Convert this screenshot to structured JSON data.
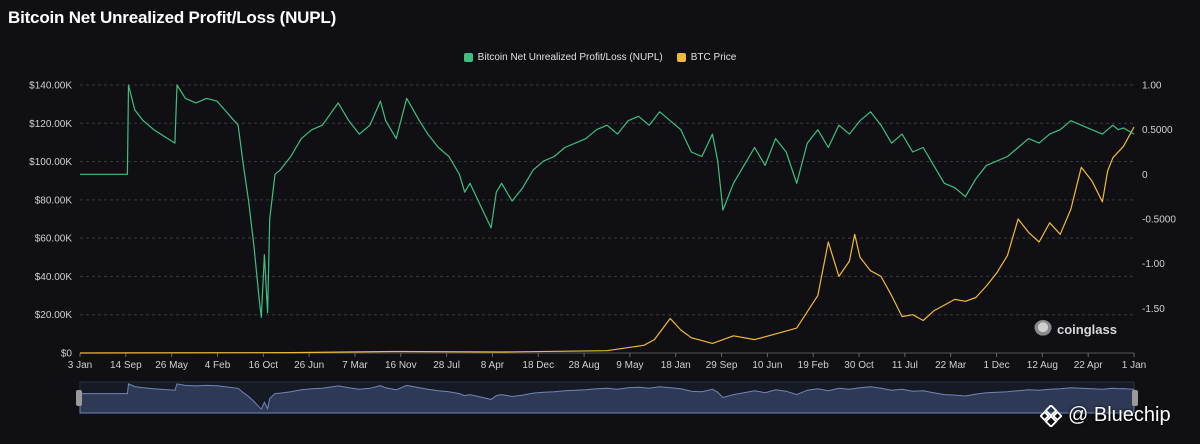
{
  "title": "Bitcoin Net Unrealized Profit/Loss (NUPL)",
  "brand": "coinglass",
  "watermark": "@ Bluechip",
  "colors": {
    "background": "#101014",
    "nupl": "#3fbf7f",
    "btc": "#f0b93a",
    "grid": "#3a3a3a",
    "navigator_fill": "#2e3a55",
    "navigator_line": "#6f86b8"
  },
  "chart_data": {
    "type": "line",
    "title": "Bitcoin Net Unrealized Profit/Loss (NUPL)",
    "legend_position": "top-center",
    "grid": "horizontal-dashed",
    "x_ticks": [
      "3 Jan",
      "14 Sep",
      "26 May",
      "4 Feb",
      "16 Oct",
      "26 Jun",
      "7 Mar",
      "16 Nov",
      "28 Jul",
      "8 Apr",
      "18 Dec",
      "28 Aug",
      "9 May",
      "18 Jan",
      "29 Sep",
      "10 Jun",
      "19 Feb",
      "30 Oct",
      "11 Jul",
      "22 Mar",
      "1 Dec",
      "12 Aug",
      "22 Apr",
      "1 Jan"
    ],
    "y_left": {
      "ticks": [
        "$0",
        "$20.00K",
        "$40.00K",
        "$60.00K",
        "$80.00K",
        "$100.00K",
        "$120.00K",
        "$140.00K"
      ],
      "range": [
        0,
        140000
      ]
    },
    "y_right": {
      "ticks": [
        "-1.50",
        "-1.00",
        "-0.5000",
        "0",
        "0.5000",
        "1.00"
      ],
      "range": [
        -2.0,
        1.0
      ]
    },
    "series": [
      {
        "name": "Bitcoin Net Unrealized Profit/Loss (NUPL)",
        "axis": "right",
        "x": [
          0,
          0.045,
          0.046,
          0.052,
          0.06,
          0.07,
          0.09,
          0.092,
          0.1,
          0.11,
          0.12,
          0.13,
          0.15,
          0.155,
          0.16,
          0.165,
          0.17,
          0.172,
          0.175,
          0.178,
          0.18,
          0.185,
          0.19,
          0.2,
          0.21,
          0.22,
          0.23,
          0.245,
          0.255,
          0.265,
          0.275,
          0.285,
          0.29,
          0.3,
          0.31,
          0.322,
          0.33,
          0.34,
          0.35,
          0.36,
          0.365,
          0.37,
          0.38,
          0.39,
          0.395,
          0.4,
          0.41,
          0.42,
          0.43,
          0.44,
          0.45,
          0.46,
          0.47,
          0.48,
          0.49,
          0.5,
          0.51,
          0.52,
          0.53,
          0.54,
          0.55,
          0.56,
          0.57,
          0.58,
          0.59,
          0.6,
          0.605,
          0.61,
          0.62,
          0.63,
          0.64,
          0.65,
          0.66,
          0.67,
          0.68,
          0.69,
          0.7,
          0.71,
          0.72,
          0.73,
          0.74,
          0.75,
          0.76,
          0.77,
          0.78,
          0.79,
          0.8,
          0.81,
          0.82,
          0.83,
          0.84,
          0.85,
          0.86,
          0.87,
          0.88,
          0.89,
          0.9,
          0.91,
          0.92,
          0.93,
          0.94,
          0.95,
          0.96,
          0.97,
          0.98,
          0.985,
          0.99,
          1.0
        ],
        "values": [
          0.0,
          0.0,
          1.0,
          0.72,
          0.6,
          0.5,
          0.35,
          1.0,
          0.85,
          0.8,
          0.85,
          0.82,
          0.55,
          0.1,
          -0.3,
          -0.8,
          -1.4,
          -1.6,
          -0.9,
          -1.55,
          -0.5,
          0.0,
          0.05,
          0.2,
          0.4,
          0.5,
          0.55,
          0.8,
          0.6,
          0.45,
          0.55,
          0.82,
          0.6,
          0.4,
          0.85,
          0.6,
          0.45,
          0.3,
          0.2,
          0.0,
          -0.2,
          -0.1,
          -0.35,
          -0.6,
          -0.2,
          -0.1,
          -0.3,
          -0.15,
          0.05,
          0.15,
          0.2,
          0.3,
          0.35,
          0.4,
          0.5,
          0.55,
          0.45,
          0.6,
          0.65,
          0.55,
          0.7,
          0.6,
          0.5,
          0.25,
          0.2,
          0.45,
          0.15,
          -0.4,
          -0.1,
          0.1,
          0.3,
          0.1,
          0.4,
          0.25,
          -0.1,
          0.35,
          0.5,
          0.3,
          0.55,
          0.45,
          0.6,
          0.7,
          0.55,
          0.35,
          0.45,
          0.25,
          0.3,
          0.1,
          -0.1,
          -0.15,
          -0.25,
          -0.05,
          0.1,
          0.15,
          0.2,
          0.3,
          0.4,
          0.35,
          0.45,
          0.5,
          0.6,
          0.55,
          0.5,
          0.45,
          0.55,
          0.5,
          0.52,
          0.45
        ]
      },
      {
        "name": "BTC Price",
        "axis": "left",
        "x": [
          0,
          0.2,
          0.3,
          0.4,
          0.5,
          0.535,
          0.545,
          0.56,
          0.57,
          0.58,
          0.6,
          0.62,
          0.64,
          0.66,
          0.68,
          0.7,
          0.71,
          0.72,
          0.73,
          0.735,
          0.74,
          0.75,
          0.76,
          0.765,
          0.77,
          0.78,
          0.79,
          0.8,
          0.81,
          0.82,
          0.83,
          0.84,
          0.85,
          0.86,
          0.87,
          0.88,
          0.89,
          0.9,
          0.91,
          0.92,
          0.93,
          0.94,
          0.95,
          0.96,
          0.97,
          0.975,
          0.98,
          0.99,
          1.0
        ],
        "values": [
          0,
          200,
          800,
          500,
          1200,
          4000,
          7000,
          18000,
          12000,
          8000,
          5000,
          9000,
          7000,
          10000,
          13000,
          30000,
          58000,
          40000,
          48000,
          62000,
          50000,
          43000,
          40000,
          35000,
          30000,
          19000,
          20000,
          17000,
          22000,
          25000,
          28000,
          27000,
          29000,
          35000,
          42000,
          51000,
          70000,
          63000,
          58000,
          68000,
          62000,
          75000,
          97000,
          90000,
          79000,
          95000,
          102000,
          108000,
          118000
        ]
      }
    ]
  }
}
